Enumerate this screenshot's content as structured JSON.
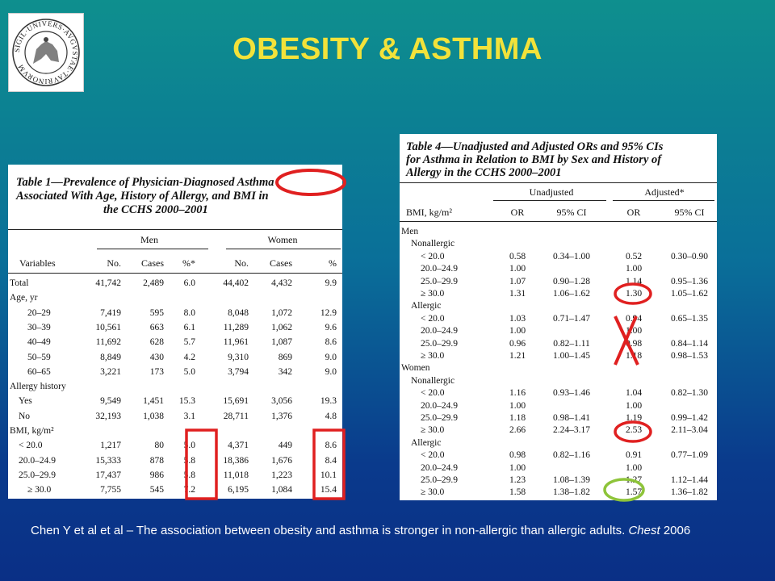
{
  "slide": {
    "title": "OBESITY & ASTHMA",
    "caption_text": "Chen Y et al et al – The association between obesity and asthma is stronger in non-allergic than allergic adults.",
    "caption_journal": "Chest",
    "caption_year": "2006",
    "logo_text": "SIGIL·UNIVERS·AVGVSTAE·TAVRINORVM",
    "colors": {
      "title": "#f2e23a",
      "red_mark": "#e02020",
      "green_mark": "#8ec43a"
    }
  },
  "table1": {
    "caption_line1": "Table 1—Prevalence of Physician-Diagnosed Asthma",
    "caption_line2": "Associated With Age, History of Allergy, and BMI in",
    "caption_line3": "the CCHS 2000–2001",
    "group_men": "Men",
    "group_women": "Women",
    "col_variables": "Variables",
    "columns": [
      "No.",
      "Cases",
      "%*",
      "No.",
      "Cases",
      "%"
    ],
    "rows": [
      {
        "label": "Total",
        "indent": 0,
        "values": [
          "41,742",
          "2,489",
          "6.0",
          "44,402",
          "4,432",
          "9.9"
        ]
      },
      {
        "label": "Age, yr",
        "indent": 0,
        "values": [
          "",
          "",
          "",
          "",
          "",
          ""
        ]
      },
      {
        "label": "20–29",
        "indent": 2,
        "values": [
          "7,419",
          "595",
          "8.0",
          "8,048",
          "1,072",
          "12.9"
        ]
      },
      {
        "label": "30–39",
        "indent": 2,
        "values": [
          "10,561",
          "663",
          "6.1",
          "11,289",
          "1,062",
          "9.6"
        ]
      },
      {
        "label": "40–49",
        "indent": 2,
        "values": [
          "11,692",
          "628",
          "5.7",
          "11,961",
          "1,087",
          "8.6"
        ]
      },
      {
        "label": "50–59",
        "indent": 2,
        "values": [
          "8,849",
          "430",
          "4.2",
          "9,310",
          "869",
          "9.0"
        ]
      },
      {
        "label": "60–65",
        "indent": 2,
        "values": [
          "3,221",
          "173",
          "5.0",
          "3,794",
          "342",
          "9.0"
        ]
      },
      {
        "label": "Allergy history",
        "indent": 0,
        "values": [
          "",
          "",
          "",
          "",
          "",
          ""
        ]
      },
      {
        "label": "Yes",
        "indent": 1,
        "values": [
          "9,549",
          "1,451",
          "15.3",
          "15,691",
          "3,056",
          "19.3"
        ]
      },
      {
        "label": "No",
        "indent": 1,
        "values": [
          "32,193",
          "1,038",
          "3.1",
          "28,711",
          "1,376",
          "4.8"
        ]
      },
      {
        "label": "BMI, kg/m²",
        "indent": 0,
        "values": [
          "",
          "",
          "",
          "",
          "",
          ""
        ]
      },
      {
        "label": "< 20.0",
        "indent": 1,
        "values": [
          "1,217",
          "80",
          "5.0",
          "4,371",
          "449",
          "8.6"
        ]
      },
      {
        "label": "20.0–24.9",
        "indent": 1,
        "values": [
          "15,333",
          "878",
          "5.8",
          "18,386",
          "1,676",
          "8.4"
        ]
      },
      {
        "label": "25.0–29.9",
        "indent": 1,
        "values": [
          "17,437",
          "986",
          "5.8",
          "11,018",
          "1,223",
          "10.1"
        ]
      },
      {
        "label": "≥ 30.0",
        "indent": 2,
        "values": [
          "7,755",
          "545",
          "7.2",
          "6,195",
          "1,084",
          "15.4"
        ]
      }
    ]
  },
  "table4": {
    "caption_line1": "Table 4—Unadjusted and Adjusted ORs and 95% CIs",
    "caption_line2": "for Asthma in Relation to BMI by Sex and History of",
    "caption_line3": "Allergy in the CCHS 2000–2001",
    "group_unadjusted": "Unadjusted",
    "group_adjusted": "Adjusted*",
    "col_bmi": "BMI, kg/m²",
    "columns": [
      "OR",
      "95% CI",
      "OR",
      "95% CI"
    ],
    "rows": [
      {
        "label": "Men",
        "indent": 0,
        "values": [
          "",
          "",
          "",
          ""
        ]
      },
      {
        "label": "Nonallergic",
        "indent": 1,
        "values": [
          "",
          "",
          "",
          ""
        ]
      },
      {
        "label": "< 20.0",
        "indent": 2,
        "values": [
          "0.58",
          "0.34–1.00",
          "0.52",
          "0.30–0.90"
        ]
      },
      {
        "label": "20.0–24.9",
        "indent": 2,
        "values": [
          "1.00",
          "",
          "1.00",
          ""
        ]
      },
      {
        "label": "25.0–29.9",
        "indent": 2,
        "values": [
          "1.07",
          "0.90–1.28",
          "1.14",
          "0.95–1.36"
        ]
      },
      {
        "label": "≥ 30.0",
        "indent": 2,
        "values": [
          "1.31",
          "1.06–1.62",
          "1.30",
          "1.05–1.62"
        ]
      },
      {
        "label": "Allergic",
        "indent": 1,
        "values": [
          "",
          "",
          "",
          ""
        ]
      },
      {
        "label": "< 20.0",
        "indent": 2,
        "values": [
          "1.03",
          "0.71–1.47",
          "0.94",
          "0.65–1.35"
        ]
      },
      {
        "label": "20.0–24.9",
        "indent": 2,
        "values": [
          "1.00",
          "",
          "1.00",
          ""
        ]
      },
      {
        "label": "25.0–29.9",
        "indent": 2,
        "values": [
          "0.96",
          "0.82–1.11",
          "0.98",
          "0.84–1.14"
        ]
      },
      {
        "label": "≥ 30.0",
        "indent": 2,
        "values": [
          "1.21",
          "1.00–1.45",
          "1.18",
          "0.98–1.53"
        ]
      },
      {
        "label": "Women",
        "indent": 0,
        "values": [
          "",
          "",
          "",
          ""
        ]
      },
      {
        "label": "Nonallergic",
        "indent": 1,
        "values": [
          "",
          "",
          "",
          ""
        ]
      },
      {
        "label": "< 20.0",
        "indent": 2,
        "values": [
          "1.16",
          "0.93–1.46",
          "1.04",
          "0.82–1.30"
        ]
      },
      {
        "label": "20.0–24.9",
        "indent": 2,
        "values": [
          "1.00",
          "",
          "1.00",
          ""
        ]
      },
      {
        "label": "25.0–29.9",
        "indent": 2,
        "values": [
          "1.18",
          "0.98–1.41",
          "1.19",
          "0.99–1.42"
        ]
      },
      {
        "label": "≥ 30.0",
        "indent": 2,
        "values": [
          "2.66",
          "2.24–3.17",
          "2.53",
          "2.11–3.04"
        ]
      },
      {
        "label": "Allergic",
        "indent": 1,
        "values": [
          "",
          "",
          "",
          ""
        ]
      },
      {
        "label": "< 20.0",
        "indent": 2,
        "values": [
          "0.98",
          "0.82–1.16",
          "0.91",
          "0.77–1.09"
        ]
      },
      {
        "label": "20.0–24.9",
        "indent": 2,
        "values": [
          "1.00",
          "",
          "1.00",
          ""
        ]
      },
      {
        "label": "25.0–29.9",
        "indent": 2,
        "values": [
          "1.23",
          "1.08–1.39",
          "1.27",
          "1.12–1.44"
        ]
      },
      {
        "label": "≥ 30.0",
        "indent": 2,
        "values": [
          "1.58",
          "1.38–1.82",
          "1.57",
          "1.36–1.82"
        ]
      }
    ]
  }
}
